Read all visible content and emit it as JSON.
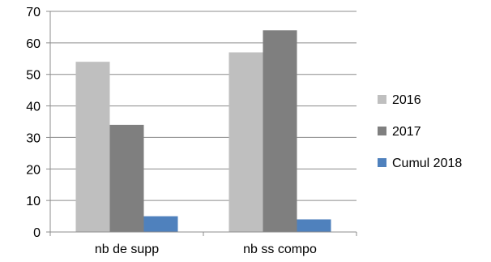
{
  "chart_data": {
    "type": "bar",
    "categories": [
      "nb de supp",
      "nb ss compo"
    ],
    "series": [
      {
        "name": "2016",
        "values": [
          54,
          57
        ],
        "color": "#bfbfbf"
      },
      {
        "name": "2017",
        "values": [
          34,
          64
        ],
        "color": "#7f7f7f"
      },
      {
        "name": "Cumul 2018",
        "values": [
          5,
          4
        ],
        "color": "#4f81bd"
      }
    ],
    "title": "",
    "xlabel": "",
    "ylabel": "",
    "ylim": [
      0,
      70
    ],
    "yticks": [
      0,
      10,
      20,
      30,
      40,
      50,
      60,
      70
    ],
    "grid": true,
    "legend_position": "right"
  }
}
